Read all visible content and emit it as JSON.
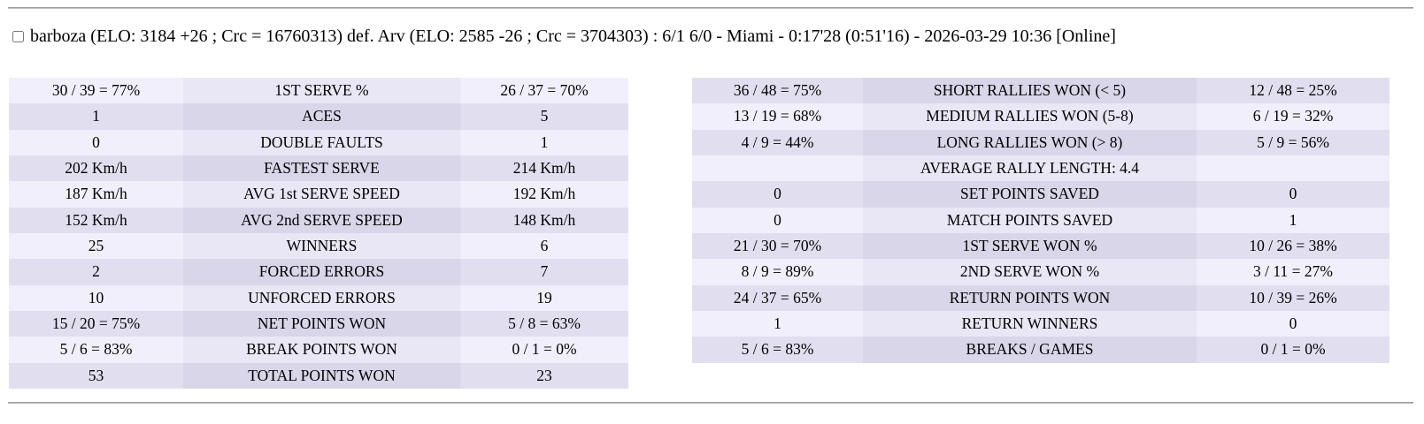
{
  "header": {
    "match_summary": "barboza (ELO: 3184 +26 ; Crc = 16760313) def. Arv (ELO: 2585 -26 ; Crc = 3704303) : 6/1 6/0 - Miami - 0:17'28 (0:51'16) - 2026-03-29 10:36 [Online]",
    "checkbox_checked": false
  },
  "colors": {
    "row_light_side": "#f1effc",
    "row_light_center": "#e9e7f5",
    "row_dark_side": "#e1dfef",
    "row_dark_center": "#d9d6e9",
    "divider": "#8f8f8f"
  },
  "left_table": {
    "rows": [
      {
        "p1": "30 / 39 = 77%",
        "label": "1ST SERVE %",
        "p2": "26 / 37 = 70%"
      },
      {
        "p1": "1",
        "label": "ACES",
        "p2": "5"
      },
      {
        "p1": "0",
        "label": "DOUBLE FAULTS",
        "p2": "1"
      },
      {
        "p1": "202 Km/h",
        "label": "FASTEST SERVE",
        "p2": "214 Km/h"
      },
      {
        "p1": "187 Km/h",
        "label": "AVG 1st SERVE SPEED",
        "p2": "192 Km/h"
      },
      {
        "p1": "152 Km/h",
        "label": "AVG 2nd SERVE SPEED",
        "p2": "148 Km/h"
      },
      {
        "p1": "25",
        "label": "WINNERS",
        "p2": "6"
      },
      {
        "p1": "2",
        "label": "FORCED ERRORS",
        "p2": "7"
      },
      {
        "p1": "10",
        "label": "UNFORCED ERRORS",
        "p2": "19"
      },
      {
        "p1": "15 / 20 = 75%",
        "label": "NET POINTS WON",
        "p2": "5 / 8 = 63%"
      },
      {
        "p1": "5 / 6 = 83%",
        "label": "BREAK POINTS WON",
        "p2": "0 / 1 = 0%"
      },
      {
        "p1": "53",
        "label": "TOTAL POINTS WON",
        "p2": "23"
      }
    ]
  },
  "right_table": {
    "rows": [
      {
        "p1": "36 / 48 = 75%",
        "label": "SHORT RALLIES WON (< 5)",
        "p2": "12 / 48 = 25%"
      },
      {
        "p1": "13 / 19 = 68%",
        "label": "MEDIUM RALLIES WON (5-8)",
        "p2": "6 / 19 = 32%"
      },
      {
        "p1": "4 / 9 = 44%",
        "label": "LONG RALLIES WON (> 8)",
        "p2": "5 / 9 = 56%"
      },
      {
        "p1": "",
        "label": "AVERAGE RALLY LENGTH: 4.4",
        "p2": ""
      },
      {
        "p1": "0",
        "label": "SET POINTS SAVED",
        "p2": "0"
      },
      {
        "p1": "0",
        "label": "MATCH POINTS SAVED",
        "p2": "1"
      },
      {
        "p1": "21 / 30 = 70%",
        "label": "1ST SERVE WON %",
        "p2": "10 / 26 = 38%"
      },
      {
        "p1": "8 / 9 = 89%",
        "label": "2ND SERVE WON %",
        "p2": "3 / 11 = 27%"
      },
      {
        "p1": "24 / 37 = 65%",
        "label": "RETURN POINTS WON",
        "p2": "10 / 39 = 26%"
      },
      {
        "p1": "1",
        "label": "RETURN WINNERS",
        "p2": "0"
      },
      {
        "p1": "5 / 6 = 83%",
        "label": "BREAKS / GAMES",
        "p2": "0 / 1 = 0%"
      }
    ]
  }
}
